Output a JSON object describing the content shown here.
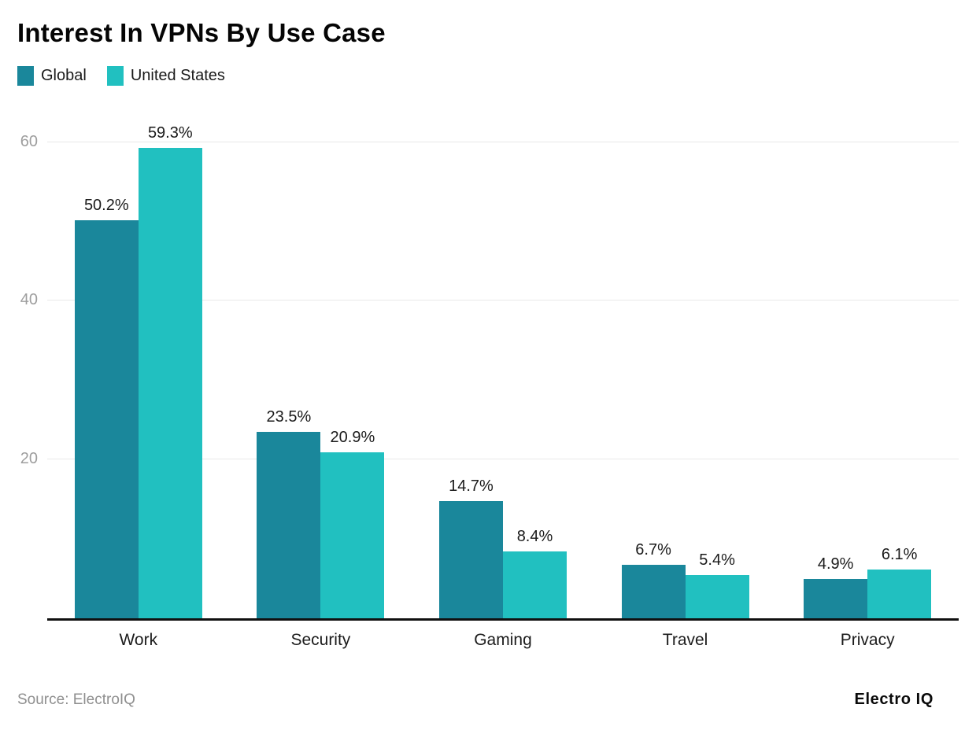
{
  "title": "Interest In VPNs By Use Case",
  "legend": [
    {
      "label": "Global",
      "color": "#1A879B"
    },
    {
      "label": "United States",
      "color": "#21C0C0"
    }
  ],
  "footer": {
    "source": "Source: ElectroIQ",
    "brand": "Electro IQ"
  },
  "chart_data": {
    "type": "bar",
    "title": "Interest In VPNs By Use Case",
    "categories": [
      "Work",
      "Security",
      "Gaming",
      "Travel",
      "Privacy"
    ],
    "series": [
      {
        "name": "Global",
        "color": "#1A879B",
        "values": [
          50.2,
          23.5,
          14.7,
          6.7,
          4.9
        ]
      },
      {
        "name": "United States",
        "color": "#21C0C0",
        "values": [
          59.3,
          20.9,
          8.4,
          5.4,
          6.1
        ]
      }
    ],
    "value_suffix": "%",
    "xlabel": "",
    "ylabel": "",
    "yticks": [
      20,
      40,
      60
    ],
    "ylim": [
      0,
      64.3
    ],
    "grid": "horizontal",
    "legend_position": "top-left",
    "tick_color": "#9e9e9e",
    "gridline_color": "#e8e8e8",
    "axis_line_color": "#101010"
  }
}
